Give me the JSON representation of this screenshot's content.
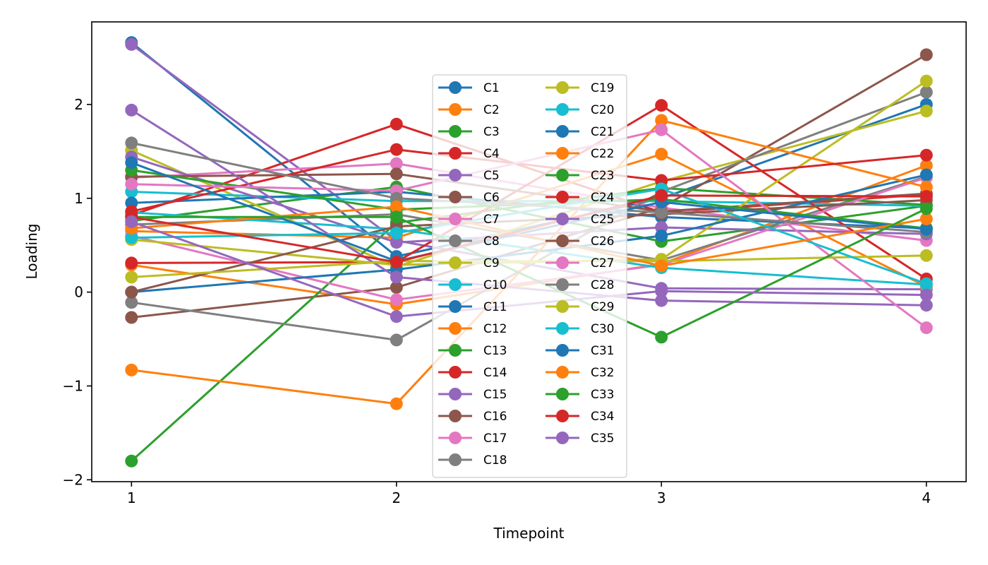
{
  "chart_data": {
    "type": "line",
    "title": "",
    "xlabel": "Timepoint",
    "ylabel": "Loading",
    "x": [
      1,
      2,
      3,
      4
    ],
    "x_tick_labels": [
      "1",
      "2",
      "3",
      "4"
    ],
    "y_ticks": [
      -2,
      -1,
      0,
      1,
      2
    ],
    "y_tick_labels": [
      "−2",
      "−1",
      "0",
      "1",
      "2"
    ],
    "xlim": [
      0.85,
      4.15
    ],
    "ylim": [
      -2.02,
      2.88
    ],
    "grid": false,
    "marker": "circle",
    "legend": {
      "placement": "upper-center",
      "columns": 2
    },
    "series": [
      {
        "name": "C1",
        "color": "#1f77b4",
        "values": [
          2.66,
          0.38,
          1.0,
          2.0
        ]
      },
      {
        "name": "C2",
        "color": "#ff7f0e",
        "values": [
          0.29,
          -0.13,
          0.3,
          1.35
        ]
      },
      {
        "name": "C3",
        "color": "#2ca02c",
        "values": [
          0.76,
          1.12,
          0.54,
          0.92
        ]
      },
      {
        "name": "C4",
        "color": "#d62728",
        "values": [
          0.82,
          1.79,
          0.85,
          1.04
        ]
      },
      {
        "name": "C5",
        "color": "#9467bd",
        "values": [
          2.64,
          0.55,
          0.04,
          0.03
        ]
      },
      {
        "name": "C6",
        "color": "#8c564b",
        "values": [
          -0.27,
          0.05,
          0.9,
          2.53
        ]
      },
      {
        "name": "C7",
        "color": "#e377c2",
        "values": [
          1.22,
          1.37,
          0.9,
          0.55
        ]
      },
      {
        "name": "C8",
        "color": "#7f7f7f",
        "values": [
          0.72,
          0.83,
          0.34,
          1.23
        ]
      },
      {
        "name": "C9",
        "color": "#bcbd22",
        "values": [
          1.51,
          0.27,
          1.18,
          1.93
        ]
      },
      {
        "name": "C10",
        "color": "#17becf",
        "values": [
          1.07,
          0.97,
          0.97,
          0.92
        ]
      },
      {
        "name": "C11",
        "color": "#1f77b4",
        "values": [
          0.95,
          1.07,
          0.8,
          0.68
        ]
      },
      {
        "name": "C12",
        "color": "#ff7f0e",
        "values": [
          0.65,
          0.58,
          1.47,
          0.06
        ]
      },
      {
        "name": "C13",
        "color": "#2ca02c",
        "values": [
          -1.8,
          0.74,
          1.11,
          0.93
        ]
      },
      {
        "name": "C14",
        "color": "#d62728",
        "values": [
          0.31,
          0.32,
          1.99,
          0.14
        ]
      },
      {
        "name": "C15",
        "color": "#9467bd",
        "values": [
          1.44,
          0.53,
          0.69,
          0.62
        ]
      },
      {
        "name": "C16",
        "color": "#8c564b",
        "values": [
          1.23,
          1.26,
          0.86,
          1.05
        ]
      },
      {
        "name": "C17",
        "color": "#e377c2",
        "values": [
          0.6,
          -0.08,
          0.29,
          1.22
        ]
      },
      {
        "name": "C18",
        "color": "#7f7f7f",
        "values": [
          -0.11,
          -0.51,
          1.07,
          2.13
        ]
      },
      {
        "name": "C19",
        "color": "#bcbd22",
        "values": [
          0.56,
          0.29,
          0.35,
          2.25
        ]
      },
      {
        "name": "C20",
        "color": "#17becf",
        "values": [
          0.85,
          0.67,
          0.26,
          0.08
        ]
      },
      {
        "name": "C21",
        "color": "#1f77b4",
        "values": [
          0.0,
          0.24,
          0.6,
          1.25
        ]
      },
      {
        "name": "C22",
        "color": "#ff7f0e",
        "values": [
          -0.83,
          -1.19,
          1.83,
          1.12
        ]
      },
      {
        "name": "C23",
        "color": "#2ca02c",
        "values": [
          1.3,
          0.88,
          0.99,
          0.68
        ]
      },
      {
        "name": "C24",
        "color": "#d62728",
        "values": [
          0.86,
          1.52,
          1.19,
          1.46
        ]
      },
      {
        "name": "C25",
        "color": "#9467bd",
        "values": [
          1.94,
          0.16,
          -0.09,
          -0.14
        ]
      },
      {
        "name": "C26",
        "color": "#8c564b",
        "values": [
          0.0,
          0.7,
          0.83,
          0.98
        ]
      },
      {
        "name": "C27",
        "color": "#e377c2",
        "values": [
          1.15,
          1.08,
          1.73,
          -0.38
        ]
      },
      {
        "name": "C28",
        "color": "#7f7f7f",
        "values": [
          1.59,
          1.0,
          0.85,
          0.64
        ]
      },
      {
        "name": "C29",
        "color": "#bcbd22",
        "values": [
          0.16,
          0.33,
          0.33,
          0.39
        ]
      },
      {
        "name": "C30",
        "color": "#17becf",
        "values": [
          0.58,
          0.63,
          1.1,
          0.09
        ]
      },
      {
        "name": "C31",
        "color": "#1f77b4",
        "values": [
          1.38,
          0.33,
          0.96,
          0.67
        ]
      },
      {
        "name": "C32",
        "color": "#ff7f0e",
        "values": [
          0.68,
          0.91,
          0.28,
          0.78
        ]
      },
      {
        "name": "C33",
        "color": "#2ca02c",
        "values": [
          0.8,
          0.8,
          -0.48,
          0.89
        ]
      },
      {
        "name": "C34",
        "color": "#d62728",
        "values": [
          0.8,
          0.32,
          1.03,
          1.02
        ]
      },
      {
        "name": "C35",
        "color": "#9467bd",
        "values": [
          0.75,
          -0.26,
          0.01,
          -0.03
        ]
      }
    ]
  }
}
